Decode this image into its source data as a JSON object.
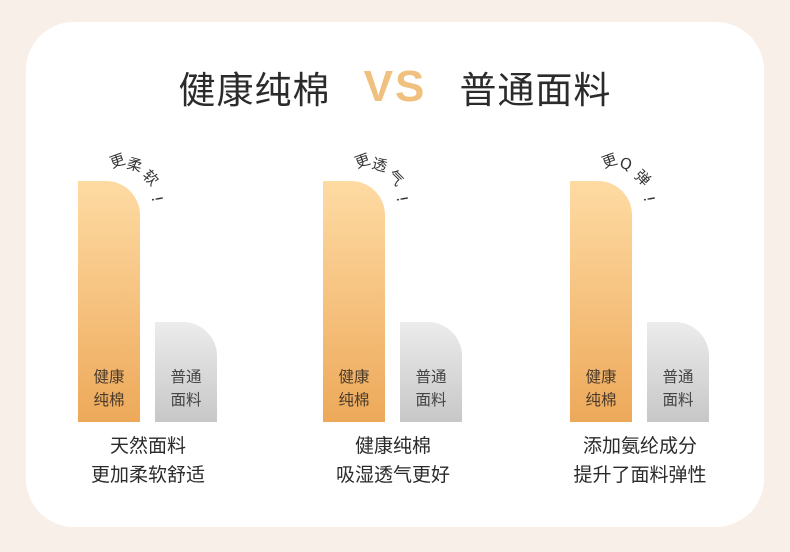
{
  "headline": {
    "left": "健康纯棉",
    "vs": "VS",
    "right": "普通面料"
  },
  "comparisons": [
    {
      "tagline_chars": [
        "更",
        "柔",
        "软",
        "!"
      ],
      "cotton_label": [
        "健康",
        "纯棉"
      ],
      "normal_label": [
        "普通",
        "面料"
      ],
      "caption": [
        "天然面料",
        "更加柔软舒适"
      ]
    },
    {
      "tagline_chars": [
        "更",
        "透",
        "气",
        "!"
      ],
      "cotton_label": [
        "健康",
        "纯棉"
      ],
      "normal_label": [
        "普通",
        "面料"
      ],
      "caption": [
        "健康纯棉",
        "吸湿透气更好"
      ]
    },
    {
      "tagline_chars": [
        "更",
        "Q",
        "弹",
        "!"
      ],
      "cotton_label": [
        "健康",
        "纯棉"
      ],
      "normal_label": [
        "普通",
        "面料"
      ],
      "caption": [
        "添加氨纶成分",
        "提升了面料弹性"
      ]
    }
  ]
}
